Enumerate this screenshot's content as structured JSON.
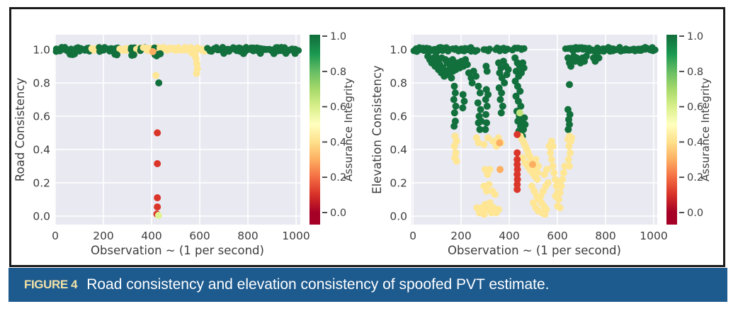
{
  "figure": {
    "caption_label": "FIGURE 4",
    "caption_text": "Road consistency and elevation consistency of spoofed PVT estimate.",
    "caption_bg": "#1d5a8e",
    "caption_label_color": "#f2e2a8",
    "frame_border_color": "#1b1b1b"
  },
  "colors": {
    "plot_bg": "#e9e9f1",
    "grid": "#ffffff",
    "tick_text": "#3d3d3d",
    "cmap": [
      "#a50026",
      "#d73027",
      "#f46d43",
      "#fdae61",
      "#fee08b",
      "#ffffbf",
      "#d9ef8b",
      "#a6d96a",
      "#66bd63",
      "#1a9850",
      "#12703c"
    ]
  },
  "chart_data": [
    {
      "type": "scatter",
      "panel": "road-consistency-plot",
      "xlabel": "Observation ~ (1 per second)",
      "ylabel": "Road Consistency",
      "xticks": [
        "0",
        "200",
        "400",
        "600",
        "800",
        "1000"
      ],
      "xtick_values": [
        0,
        200,
        400,
        600,
        800,
        1000
      ],
      "yticks": [
        "0.0",
        "0.2",
        "0.4",
        "0.6",
        "0.8",
        "1.0"
      ],
      "ytick_values": [
        0.0,
        0.2,
        0.4,
        0.6,
        0.8,
        1.0
      ],
      "xlim": [
        0,
        1000
      ],
      "ylim": [
        0,
        1
      ],
      "grid": true,
      "colorbar": {
        "label": "Assurance Integrity",
        "ticks": [
          "0.0",
          "0.2",
          "0.4",
          "0.6",
          "0.8",
          "1.0"
        ],
        "tick_values": [
          0.0,
          0.2,
          0.4,
          0.6,
          0.8,
          1.0
        ],
        "range": [
          0,
          1
        ]
      },
      "group_integrity": {
        "green": 1.0,
        "yellow": 0.42,
        "orange": 0.3,
        "red": 0.11
      },
      "band_segments": [
        [
          0,
          148,
          1.0,
          6
        ],
        [
          148,
          178,
          0.42,
          5
        ],
        [
          178,
          268,
          1.0,
          6
        ],
        [
          268,
          312,
          0.42,
          5
        ],
        [
          312,
          340,
          1.0,
          6
        ],
        [
          338,
          354,
          0.42,
          5
        ],
        [
          352,
          370,
          1.0,
          6
        ],
        [
          368,
          430,
          0.42,
          5
        ],
        [
          408,
          434,
          1.0,
          6
        ],
        [
          430,
          638,
          0.42,
          5
        ],
        [
          636,
          1008,
          1.0,
          5
        ]
      ],
      "green_points": [
        [
          62,
          0.972
        ],
        [
          72,
          0.97
        ],
        [
          80,
          0.974
        ],
        [
          248,
          0.972
        ],
        [
          256,
          0.969
        ],
        [
          318,
          0.966
        ],
        [
          326,
          0.969
        ],
        [
          414,
          0.97
        ],
        [
          421,
          0.963
        ],
        [
          428,
          0.972
        ],
        [
          436,
          0.975
        ],
        [
          700,
          0.978
        ],
        [
          782,
          0.976
        ],
        [
          852,
          0.978
        ],
        [
          908,
          0.976
        ],
        [
          958,
          0.978
        ],
        [
          996,
          0.977
        ],
        [
          430,
          0.8
        ]
      ],
      "yellow_points": [
        [
          563,
          0.985
        ],
        [
          569,
          0.978
        ],
        [
          576,
          0.972
        ],
        [
          581,
          0.967
        ],
        [
          585,
          0.945
        ],
        [
          588,
          0.915
        ],
        [
          590,
          0.885
        ],
        [
          587,
          0.857
        ],
        [
          418,
          0.845
        ]
      ],
      "orange_points": [
        [
          405,
          0.988
        ]
      ],
      "red_points": [
        [
          424,
          0.5
        ],
        [
          424,
          0.315
        ],
        [
          424,
          0.11
        ],
        [
          424,
          0.055
        ],
        [
          422,
          0.012
        ]
      ],
      "special_points": [
        [
          429,
          0.004,
          0.58
        ]
      ]
    },
    {
      "type": "scatter",
      "panel": "elevation-consistency-plot",
      "xlabel": "Observation ~ (1 per second)",
      "ylabel": "Elevation Consistency",
      "xticks": [
        "0",
        "200",
        "400",
        "600",
        "800",
        "1000"
      ],
      "xtick_values": [
        0,
        200,
        400,
        600,
        800,
        1000
      ],
      "yticks": [
        "0.0",
        "0.2",
        "0.4",
        "0.6",
        "0.8",
        "1.0"
      ],
      "ytick_values": [
        0.0,
        0.2,
        0.4,
        0.6,
        0.8,
        1.0
      ],
      "xlim": [
        0,
        1000
      ],
      "ylim": [
        0,
        1
      ],
      "grid": true,
      "colorbar": {
        "label": "Assurance Integrity",
        "ticks": [
          "0.0",
          "0.2",
          "0.4",
          "0.6",
          "0.8",
          "1.0"
        ],
        "tick_values": [
          0.0,
          0.2,
          0.4,
          0.6,
          0.8,
          1.0
        ],
        "range": [
          0,
          1
        ]
      },
      "group_integrity": {
        "green": 1.0,
        "yellow": 0.42,
        "orange": 0.3,
        "red": 0.11
      },
      "band_segments": [
        [
          0,
          150,
          1.0,
          5
        ],
        [
          168,
          246,
          1.0,
          6
        ],
        [
          252,
          272,
          1.0,
          7
        ],
        [
          296,
          318,
          1.0,
          7
        ],
        [
          348,
          398,
          1.0,
          6
        ],
        [
          415,
          468,
          1.0,
          8
        ],
        [
          638,
          1010,
          1.0,
          5
        ]
      ],
      "green_points": [
        [
          62,
          0.96
        ],
        [
          70,
          0.94
        ],
        [
          78,
          0.92
        ],
        [
          86,
          0.95
        ],
        [
          92,
          0.9
        ],
        [
          100,
          0.93
        ],
        [
          106,
          0.88
        ],
        [
          112,
          0.91
        ],
        [
          118,
          0.86
        ],
        [
          124,
          0.89
        ],
        [
          130,
          0.84
        ],
        [
          136,
          0.87
        ],
        [
          142,
          0.92
        ],
        [
          148,
          0.85
        ],
        [
          154,
          0.89
        ],
        [
          160,
          0.83
        ],
        [
          166,
          0.87
        ],
        [
          172,
          0.91
        ],
        [
          178,
          0.88
        ],
        [
          186,
          0.92
        ],
        [
          194,
          0.89
        ],
        [
          202,
          0.93
        ],
        [
          210,
          0.9
        ],
        [
          218,
          0.94
        ],
        [
          226,
          0.91
        ],
        [
          120,
          0.95
        ],
        [
          135,
          0.94
        ],
        [
          95,
          0.96
        ],
        [
          150,
          0.93
        ],
        [
          165,
          0.94
        ],
        [
          172,
          0.78
        ],
        [
          176,
          0.74
        ],
        [
          170,
          0.7
        ],
        [
          178,
          0.66
        ],
        [
          173,
          0.62
        ],
        [
          176,
          0.57
        ],
        [
          171,
          0.54
        ],
        [
          208,
          0.73
        ],
        [
          213,
          0.69
        ],
        [
          207,
          0.65
        ],
        [
          232,
          0.86
        ],
        [
          242,
          0.83
        ],
        [
          252,
          0.87
        ],
        [
          262,
          0.84
        ],
        [
          246,
          0.8
        ],
        [
          272,
          0.78
        ],
        [
          279,
          0.74
        ],
        [
          270,
          0.68
        ],
        [
          281,
          0.64
        ],
        [
          275,
          0.6
        ],
        [
          272,
          0.56
        ],
        [
          278,
          0.52
        ],
        [
          284,
          0.57
        ],
        [
          304,
          0.9
        ],
        [
          308,
          0.87
        ],
        [
          305,
          0.76
        ],
        [
          302,
          0.7
        ],
        [
          308,
          0.66
        ],
        [
          303,
          0.61
        ],
        [
          306,
          0.56
        ],
        [
          301,
          0.52
        ],
        [
          312,
          0.73
        ],
        [
          356,
          0.92
        ],
        [
          366,
          0.89
        ],
        [
          376,
          0.93
        ],
        [
          386,
          0.9
        ],
        [
          360,
          0.86
        ],
        [
          370,
          0.83
        ],
        [
          380,
          0.8
        ],
        [
          390,
          0.85
        ],
        [
          396,
          0.88
        ],
        [
          358,
          0.77
        ],
        [
          368,
          0.74
        ],
        [
          363,
          0.7
        ],
        [
          373,
          0.66
        ],
        [
          367,
          0.62
        ],
        [
          424,
          0.95
        ],
        [
          434,
          0.92
        ],
        [
          444,
          0.9
        ],
        [
          429,
          0.87
        ],
        [
          439,
          0.84
        ],
        [
          450,
          0.86
        ],
        [
          456,
          0.92
        ],
        [
          461,
          0.89
        ],
        [
          425,
          0.81
        ],
        [
          435,
          0.78
        ],
        [
          445,
          0.75
        ],
        [
          428,
          0.72
        ],
        [
          438,
          0.69
        ],
        [
          448,
          0.66
        ],
        [
          432,
          0.63
        ],
        [
          442,
          0.6
        ],
        [
          436,
          0.57
        ],
        [
          447,
          0.54
        ],
        [
          440,
          0.51
        ],
        [
          453,
          0.57
        ],
        [
          459,
          0.52
        ],
        [
          463,
          0.59
        ],
        [
          455,
          0.48
        ],
        [
          466,
          0.55
        ],
        [
          650,
          0.79
        ],
        [
          644,
          0.64
        ],
        [
          652,
          0.61
        ],
        [
          647,
          0.58
        ],
        [
          650,
          0.55
        ],
        [
          645,
          0.52
        ],
        [
          644,
          0.95
        ],
        [
          650,
          0.92
        ],
        [
          656,
          0.9
        ],
        [
          662,
          0.93
        ],
        [
          668,
          0.96
        ],
        [
          674,
          0.93
        ],
        [
          680,
          0.95
        ],
        [
          688,
          0.94
        ],
        [
          696,
          0.92
        ],
        [
          704,
          0.95
        ],
        [
          712,
          0.93
        ],
        [
          720,
          0.96
        ],
        [
          750,
          0.95
        ],
        [
          757,
          0.93
        ],
        [
          764,
          0.96
        ],
        [
          772,
          0.95
        ]
      ],
      "yellow_points": [
        [
          175,
          0.48
        ],
        [
          181,
          0.45
        ],
        [
          172,
          0.42
        ],
        [
          178,
          0.38
        ],
        [
          174,
          0.35
        ],
        [
          181,
          0.33
        ],
        [
          264,
          0.47
        ],
        [
          272,
          0.44
        ],
        [
          295,
          0.43
        ],
        [
          312,
          0.47
        ],
        [
          332,
          0.45
        ],
        [
          347,
          0.42
        ],
        [
          355,
          0.47
        ],
        [
          366,
          0.44
        ],
        [
          300,
          0.28
        ],
        [
          310,
          0.25
        ],
        [
          320,
          0.28
        ],
        [
          295,
          0.18
        ],
        [
          306,
          0.15
        ],
        [
          316,
          0.19
        ],
        [
          330,
          0.15
        ],
        [
          341,
          0.13
        ],
        [
          266,
          0.05
        ],
        [
          276,
          0.02
        ],
        [
          286,
          0.05
        ],
        [
          296,
          0.01
        ],
        [
          306,
          0.04
        ],
        [
          316,
          0.06
        ],
        [
          326,
          0.02
        ],
        [
          336,
          0.05
        ],
        [
          346,
          0.02
        ],
        [
          356,
          0.04
        ],
        [
          300,
          0.07
        ],
        [
          320,
          0.08
        ],
        [
          446,
          0.48
        ],
        [
          453,
          0.46
        ],
        [
          461,
          0.44
        ],
        [
          467,
          0.42
        ],
        [
          473,
          0.4
        ],
        [
          479,
          0.38
        ],
        [
          485,
          0.36
        ],
        [
          491,
          0.34
        ],
        [
          497,
          0.32
        ],
        [
          503,
          0.3
        ],
        [
          509,
          0.28
        ],
        [
          456,
          0.35
        ],
        [
          466,
          0.32
        ],
        [
          476,
          0.3
        ],
        [
          486,
          0.28
        ],
        [
          496,
          0.26
        ],
        [
          506,
          0.24
        ],
        [
          516,
          0.22
        ],
        [
          521,
          0.3
        ],
        [
          511,
          0.34
        ],
        [
          518,
          0.26
        ],
        [
          494,
          0.18
        ],
        [
          504,
          0.15
        ],
        [
          514,
          0.12
        ],
        [
          524,
          0.1
        ],
        [
          534,
          0.08
        ],
        [
          544,
          0.06
        ],
        [
          554,
          0.04
        ],
        [
          500,
          0.08
        ],
        [
          510,
          0.05
        ],
        [
          521,
          0.03
        ],
        [
          531,
          0.12
        ],
        [
          541,
          0.15
        ],
        [
          551,
          0.18
        ],
        [
          561,
          0.2
        ],
        [
          546,
          0.25
        ],
        [
          556,
          0.28
        ],
        [
          536,
          0.02
        ],
        [
          548,
          0.01
        ],
        [
          566,
          0.42
        ],
        [
          571,
          0.38
        ],
        [
          576,
          0.34
        ],
        [
          581,
          0.3
        ],
        [
          586,
          0.26
        ],
        [
          591,
          0.22
        ],
        [
          596,
          0.18
        ],
        [
          601,
          0.14
        ],
        [
          606,
          0.1
        ],
        [
          611,
          0.14
        ],
        [
          616,
          0.18
        ],
        [
          621,
          0.22
        ],
        [
          626,
          0.26
        ],
        [
          631,
          0.3
        ],
        [
          576,
          0.45
        ],
        [
          581,
          0.42
        ],
        [
          601,
          0.06
        ],
        [
          611,
          0.05
        ],
        [
          592,
          0.12
        ],
        [
          606,
          0.2
        ],
        [
          650,
          0.48
        ],
        [
          656,
          0.45
        ],
        [
          648,
          0.42
        ],
        [
          653,
          0.38
        ],
        [
          646,
          0.34
        ],
        [
          650,
          0.3
        ],
        [
          659,
          0.47
        ],
        [
          644,
          0.46
        ]
      ],
      "orange_points": [
        [
          362,
          0.28
        ],
        [
          360,
          0.44
        ],
        [
          497,
          0.31
        ]
      ],
      "red_points": [
        [
          433,
          0.49
        ],
        [
          433,
          0.38
        ],
        [
          433,
          0.34
        ],
        [
          433,
          0.31
        ],
        [
          434,
          0.28
        ],
        [
          433,
          0.25
        ],
        [
          434,
          0.22
        ],
        [
          433,
          0.19
        ],
        [
          433,
          0.16
        ]
      ],
      "special_points": [
        [
          444,
          0.62,
          0.65
        ]
      ]
    }
  ]
}
